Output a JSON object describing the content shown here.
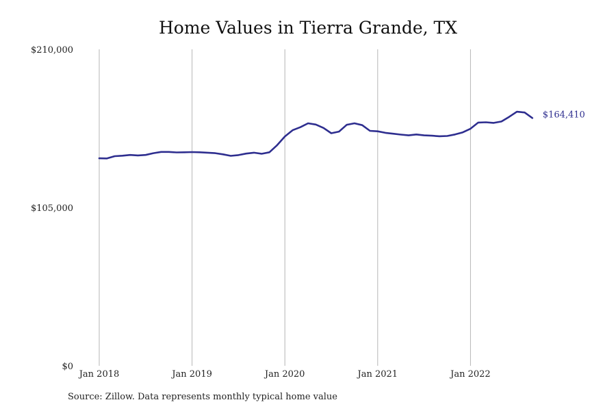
{
  "chart_data": {
    "type": "line",
    "title": "Home Values in Tierra Grande, TX",
    "xlabel": "",
    "ylabel": "",
    "ylim": [
      0,
      210000
    ],
    "yticks": [
      {
        "value": 0,
        "label": "$0"
      },
      {
        "value": 105000,
        "label": "$105,000"
      },
      {
        "value": 210000,
        "label": "$210,000"
      }
    ],
    "xticks": [
      {
        "index": 0,
        "label": "Jan 2018"
      },
      {
        "index": 12,
        "label": "Jan 2019"
      },
      {
        "index": 24,
        "label": "Jan 2020"
      },
      {
        "index": 36,
        "label": "Jan 2021"
      },
      {
        "index": 48,
        "label": "Jan 2022"
      }
    ],
    "grid": "vertical at x ticks",
    "series": [
      {
        "color": "#2e2e8f",
        "values": [
          137700,
          137600,
          139100,
          139400,
          139900,
          139600,
          139900,
          141100,
          141900,
          141900,
          141600,
          141700,
          141800,
          141700,
          141400,
          141100,
          140300,
          139300,
          139800,
          140800,
          141400,
          140700,
          141700,
          146400,
          152200,
          156300,
          158300,
          160900,
          160100,
          157800,
          154300,
          155400,
          159900,
          160900,
          159700,
          155900,
          155600,
          154600,
          154000,
          153400,
          152900,
          153500,
          152900,
          152700,
          152300,
          152500,
          153500,
          154900,
          157300,
          161400,
          161600,
          161200,
          162100,
          165200,
          168600,
          168100,
          164410
        ]
      }
    ],
    "end_label": "$164,410"
  },
  "footer": {
    "source": "Source: Zillow. Data represents monthly typical home value"
  }
}
